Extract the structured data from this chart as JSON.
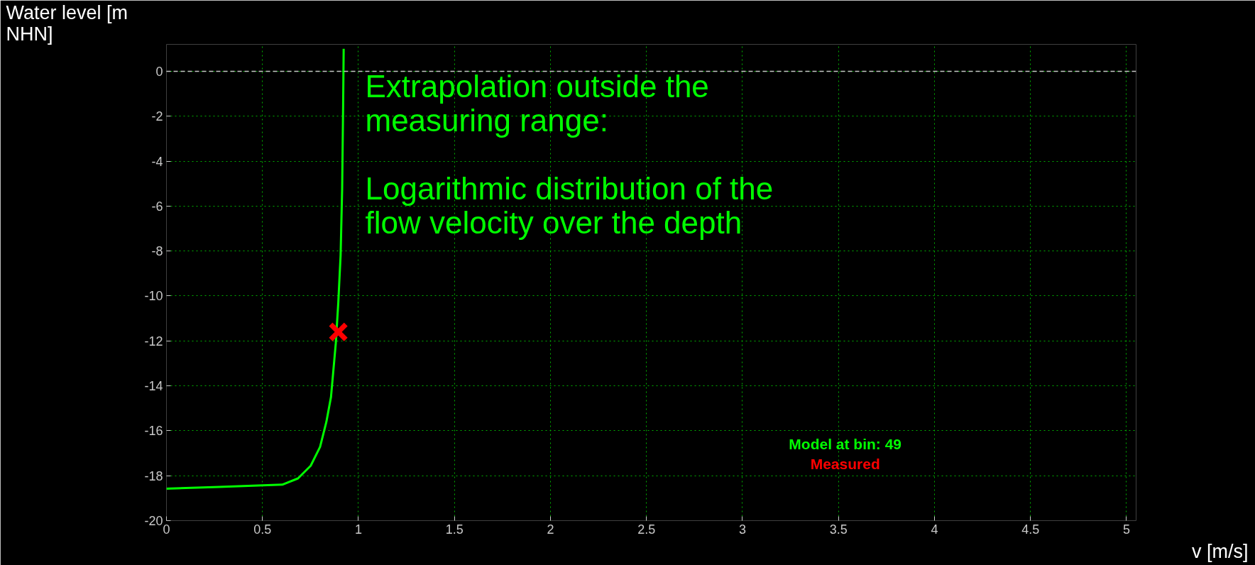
{
  "chart_data": {
    "type": "line",
    "xlabel": "v [m/s]",
    "ylabel": "Water level [m NHN]",
    "xlim": [
      0,
      5.05
    ],
    "ylim": [
      -20,
      1.2
    ],
    "xticks": [
      0,
      0.5,
      1,
      1.5,
      2,
      2.5,
      3,
      3.5,
      4,
      4.5,
      5
    ],
    "yticks": [
      -20,
      -18,
      -16,
      -14,
      -12,
      -10,
      -8,
      -6,
      -4,
      -2,
      0
    ],
    "grid": true,
    "legend": "bottom right",
    "ref_lines": [
      {
        "axis": "y",
        "value": 0,
        "color": "#c8c8c8",
        "line_style": "dashed"
      }
    ],
    "annotations": [
      "Extrapolation outside the\nmeasuring range:\n\nLogarithmic distribution of the\nflow velocity over the depth"
    ],
    "series": [
      {
        "name": "Model at bin: 49",
        "color": "#00ff00",
        "line_style": "solid",
        "x": [
          0,
          0.022,
          0.275,
          0.603,
          0.685,
          0.751,
          0.8,
          0.833,
          0.857,
          0.882,
          0.895,
          0.907,
          0.915,
          0.92,
          0.923
        ],
        "values": [
          -18.58,
          -18.57,
          -18.5,
          -18.4,
          -18.12,
          -17.56,
          -16.72,
          -15.6,
          -14.49,
          -12.1,
          -10.28,
          -8.19,
          -5.25,
          -1.61,
          1.0
        ]
      },
      {
        "name": "Measured",
        "type": "scatter",
        "marker": "cross",
        "color": "#ff0000",
        "x": [
          0.895
        ],
        "values": [
          -11.6
        ]
      }
    ]
  }
}
